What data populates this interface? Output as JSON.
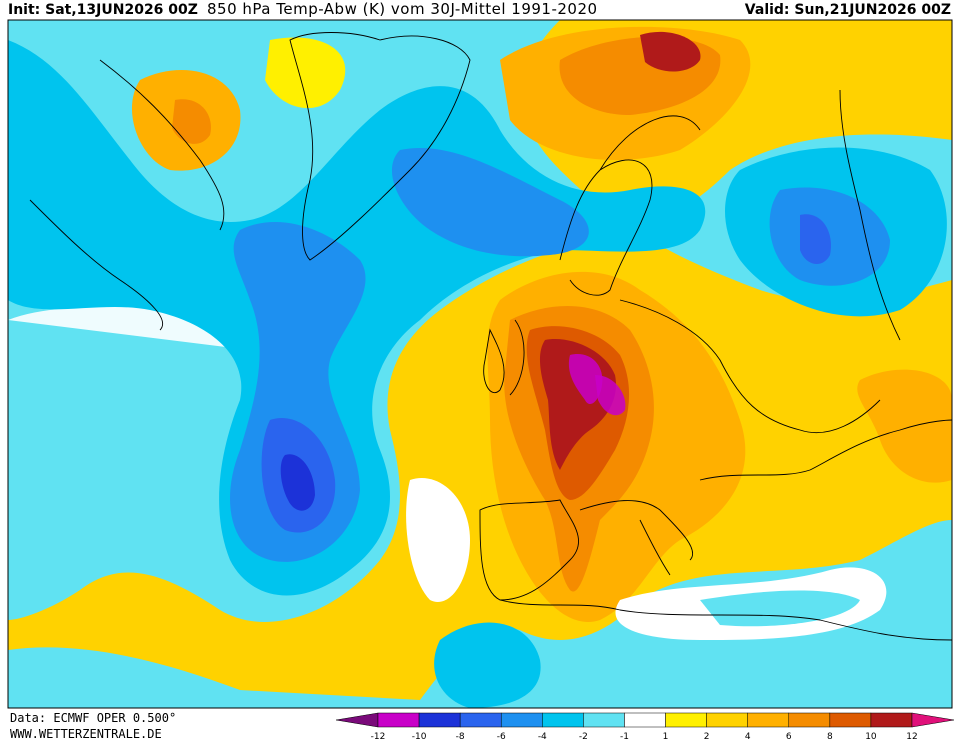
{
  "header": {
    "init": "Init: Sat,13JUN2026 00Z",
    "title": "850 hPa Temp-Abw (K) vom 30J-Mittel 1991-2020",
    "valid": "Valid: Sun,21JUN2026 00Z"
  },
  "footer": {
    "source": "Data: ECMWF OPER 0.500°",
    "website": "WWW.WETTERZENTRALE.DE"
  },
  "legend": {
    "ticks": [
      -12,
      -10,
      -8,
      -6,
      -4,
      -2,
      -1,
      1,
      2,
      4,
      6,
      8,
      10,
      12
    ],
    "colors": [
      "#7a0a7a",
      "#c800c8",
      "#1c32d8",
      "#2a64ee",
      "#1e90f0",
      "#00c4ee",
      "#60e2f2",
      "#ffffff",
      "#fff000",
      "#ffd200",
      "#ffb000",
      "#f58c00",
      "#de5a00",
      "#b01a1a",
      "#e0107a"
    ]
  }
}
